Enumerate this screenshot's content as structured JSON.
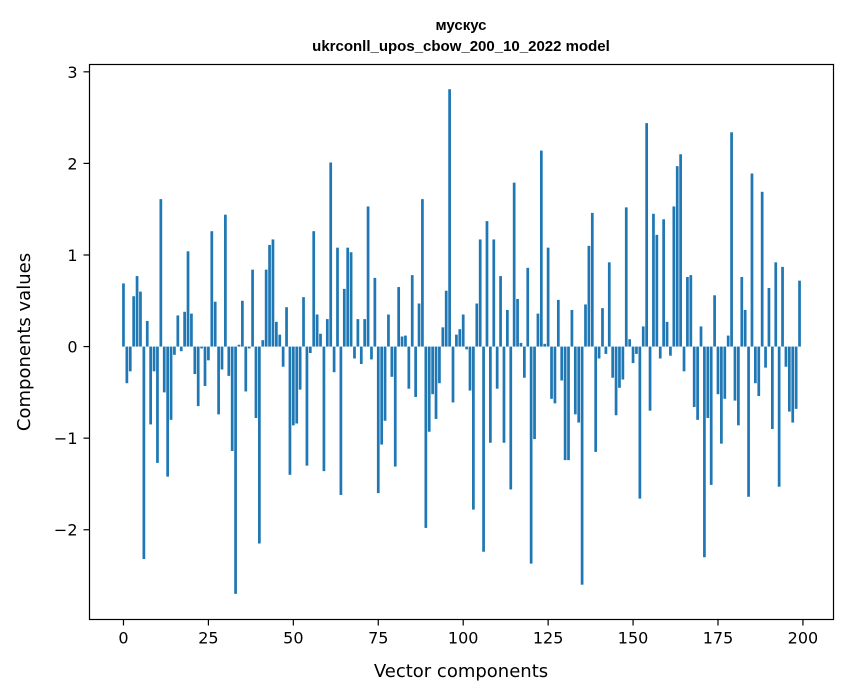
{
  "chart_data": {
    "type": "bar",
    "title_line1": "мускус",
    "title_line2": "ukrconll_upos_cbow_200_10_2022 model",
    "xlabel": "Vector components",
    "ylabel": "Components values",
    "xlim": [
      -10,
      209
    ],
    "ylim": [
      -2.98,
      3.08
    ],
    "x_ticks": [
      0,
      25,
      50,
      75,
      100,
      125,
      150,
      175,
      200
    ],
    "x_tick_labels": [
      "0",
      "25",
      "50",
      "75",
      "100",
      "125",
      "150",
      "175",
      "200"
    ],
    "y_ticks": [
      -2,
      -1,
      0,
      1,
      2,
      3
    ],
    "y_tick_labels": [
      "−2",
      "−1",
      "0",
      "1",
      "2",
      "3"
    ],
    "bar_color": "#1f77b4",
    "values": [
      0.69,
      -0.4,
      -0.27,
      0.55,
      0.77,
      0.6,
      -2.32,
      0.28,
      -0.85,
      -0.27,
      -1.27,
      1.61,
      -0.5,
      -1.42,
      -0.8,
      -0.09,
      0.34,
      -0.05,
      0.38,
      1.04,
      0.36,
      -0.3,
      -0.65,
      -0.02,
      -0.43,
      -0.15,
      1.26,
      0.49,
      -0.74,
      -0.25,
      1.44,
      -0.32,
      -1.14,
      -2.7,
      0.02,
      0.5,
      -0.49,
      -0.02,
      0.84,
      -0.78,
      -2.15,
      0.07,
      0.84,
      1.11,
      1.17,
      0.27,
      0.13,
      -0.22,
      0.43,
      -1.4,
      -0.86,
      -0.84,
      -0.47,
      0.54,
      -1.3,
      -0.07,
      1.26,
      0.35,
      0.14,
      -1.36,
      0.3,
      2.01,
      -0.28,
      1.08,
      -1.62,
      0.63,
      1.08,
      1.03,
      -0.13,
      0.3,
      -0.19,
      0.3,
      1.53,
      -0.14,
      0.75,
      -1.6,
      -1.07,
      -0.81,
      0.35,
      -0.33,
      -1.31,
      0.65,
      0.11,
      0.12,
      -0.46,
      0.78,
      -0.55,
      0.47,
      1.61,
      -1.98,
      -0.93,
      -0.52,
      -0.79,
      -0.4,
      0.21,
      0.61,
      2.81,
      -0.61,
      0.13,
      0.19,
      0.35,
      -0.03,
      -0.48,
      -1.78,
      0.47,
      1.17,
      -2.24,
      1.37,
      -1.05,
      1.17,
      -0.46,
      0.77,
      -1.05,
      0.4,
      -1.56,
      1.79,
      0.52,
      0.04,
      -0.34,
      0.86,
      -2.37,
      -1.01,
      0.36,
      2.14,
      0.03,
      1.08,
      -0.57,
      -0.62,
      0.51,
      -0.37,
      -1.24,
      -1.24,
      0.4,
      -0.74,
      -0.83,
      -2.6,
      0.46,
      1.1,
      1.46,
      -1.15,
      -0.13,
      0.42,
      -0.08,
      0.92,
      -0.34,
      -0.75,
      -0.45,
      -0.36,
      1.52,
      0.08,
      -0.18,
      -0.08,
      -1.66,
      0.22,
      2.44,
      -0.7,
      1.45,
      1.22,
      -0.13,
      1.39,
      0.27,
      -0.1,
      1.53,
      1.97,
      2.1,
      -0.27,
      0.76,
      0.78,
      -0.66,
      -0.8,
      0.22,
      -2.3,
      -0.78,
      -1.51,
      0.56,
      -0.52,
      -1.06,
      -0.57,
      0.12,
      2.34,
      -0.59,
      -0.86,
      0.76,
      0.4,
      -1.64,
      1.89,
      -0.4,
      -0.54,
      1.69,
      -0.23,
      0.64,
      -0.9,
      0.92,
      -1.53,
      0.87,
      -0.22,
      -0.71,
      -0.83,
      -0.68,
      0.72
    ]
  }
}
